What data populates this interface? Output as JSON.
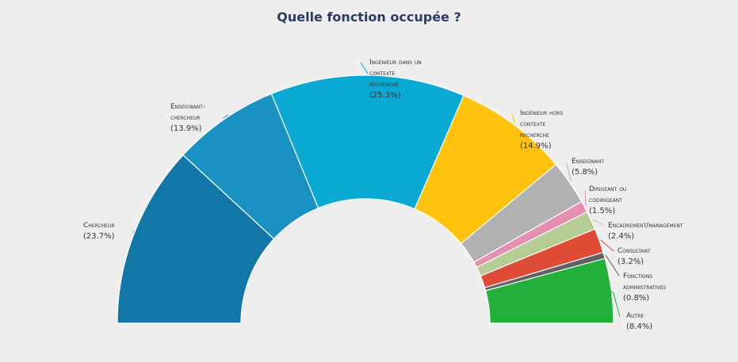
{
  "chart_data": {
    "type": "pie",
    "title": "Quelle fonction occupée ?",
    "categories": [
      "Chercheur",
      "Enseignant-chercheur",
      "Ingénieur dans un contexte recherche",
      "Ingénieur hors contexte recherche",
      "Enseignant",
      "Dirigeant ou codirigeant",
      "Encadrement/management",
      "Consultant",
      "Fonctions administratives",
      "Autre"
    ],
    "values": [
      23.7,
      13.9,
      25.3,
      14.9,
      5.8,
      1.5,
      2.4,
      3.2,
      0.8,
      8.4
    ],
    "value_labels": [
      "(23.7%)",
      "(13.9%)",
      "(25.3%)",
      "(14.9%)",
      "(5.8%)",
      "(1.5%)",
      "(2.4%)",
      "(3.2%)",
      "(0.8%)",
      "(8.4%)"
    ],
    "colors": [
      "#1277a6",
      "#1992c3",
      "#0aa9d4",
      "#ffc20e",
      "#b1b1b1",
      "#e58fb5",
      "#b5cd92",
      "#e04b35",
      "#616161",
      "#22b03b"
    ],
    "shape": "semicircle-donut"
  }
}
